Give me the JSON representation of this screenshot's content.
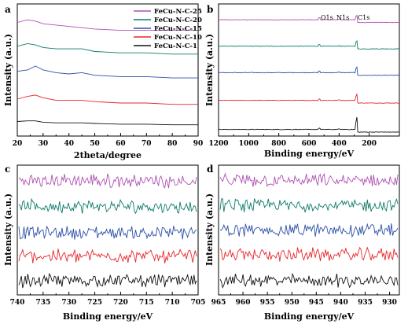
{
  "colors": {
    "FeCu-N-C-25": "#b04fb4",
    "FeCu-N-C-20": "#0c7a6a",
    "FeCu-N-C-15": "#2b4fa8",
    "FeCu-N-C-10": "#e8262a",
    "FeCu-N-C-1": "#111111"
  },
  "legend": [
    "FeCu-N-C-25",
    "FeCu-N-C-20",
    "FeCu-N-C-15",
    "FeCu-N-C-10",
    "FeCu-N-C-1"
  ],
  "chart_data": [
    {
      "panel": "a",
      "type": "line",
      "xlabel": "2theta/degree",
      "ylabel": "Intensity (a.u.)",
      "xlim": [
        20,
        90
      ],
      "x_ticks": [
        "20",
        "30",
        "40",
        "50",
        "60",
        "70",
        "80",
        "90"
      ],
      "series": [
        {
          "name": "FeCu-N-C-25",
          "x": [
            20,
            24,
            27,
            30,
            35,
            40,
            45,
            50,
            60,
            70,
            80,
            90
          ],
          "y": [
            0.86,
            0.88,
            0.87,
            0.85,
            0.84,
            0.83,
            0.82,
            0.81,
            0.8,
            0.8,
            0.8,
            0.8
          ]
        },
        {
          "name": "FeCu-N-C-20",
          "x": [
            20,
            24,
            27,
            30,
            35,
            40,
            45,
            50,
            60,
            70,
            80,
            90
          ],
          "y": [
            0.68,
            0.7,
            0.69,
            0.67,
            0.66,
            0.66,
            0.66,
            0.64,
            0.63,
            0.63,
            0.62,
            0.62
          ]
        },
        {
          "name": "FeCu-N-C-15",
          "x": [
            20,
            24,
            27,
            30,
            35,
            40,
            45,
            50,
            60,
            70,
            80,
            90
          ],
          "y": [
            0.49,
            0.5,
            0.53,
            0.5,
            0.48,
            0.47,
            0.48,
            0.46,
            0.45,
            0.45,
            0.44,
            0.44
          ]
        },
        {
          "name": "FeCu-N-C-10",
          "x": [
            20,
            24,
            27,
            30,
            35,
            40,
            45,
            50,
            60,
            70,
            80,
            90
          ],
          "y": [
            0.28,
            0.3,
            0.31,
            0.29,
            0.27,
            0.27,
            0.27,
            0.26,
            0.25,
            0.25,
            0.24,
            0.24
          ]
        },
        {
          "name": "FeCu-N-C-1",
          "x": [
            20,
            24,
            27,
            30,
            35,
            40,
            45,
            50,
            60,
            70,
            80,
            90
          ],
          "y": [
            0.11,
            0.115,
            0.115,
            0.105,
            0.1,
            0.1,
            0.1,
            0.095,
            0.09,
            0.09,
            0.085,
            0.085
          ]
        }
      ]
    },
    {
      "panel": "b",
      "type": "line",
      "xlabel": "Binding energy/eV",
      "ylabel": "Intensity (a.u.)",
      "xlim": [
        1200,
        0
      ],
      "x_ticks": [
        "1200",
        "1000",
        "800",
        "600",
        "400",
        "200"
      ],
      "annotations": [
        "O1s",
        "N1s",
        "C1s"
      ],
      "series": [
        {
          "name": "FeCu-N-C-25",
          "baseline": 0.88,
          "peak_c1s": 0.08,
          "peak_o1s": 0.015
        },
        {
          "name": "FeCu-N-C-20",
          "baseline": 0.68,
          "peak_c1s": 0.09,
          "peak_o1s": 0.012
        },
        {
          "name": "FeCu-N-C-15",
          "baseline": 0.48,
          "peak_c1s": 0.09,
          "peak_o1s": 0.012
        },
        {
          "name": "FeCu-N-C-10",
          "baseline": 0.27,
          "peak_c1s": 0.1,
          "peak_o1s": 0.01
        },
        {
          "name": "FeCu-N-C-1",
          "baseline": 0.05,
          "peak_c1s": 0.17,
          "peak_o1s": 0.01
        }
      ]
    },
    {
      "panel": "c",
      "type": "line",
      "xlabel": "Binding energy/eV",
      "ylabel": "Intensity (a.u.)",
      "xlim": [
        740,
        705
      ],
      "x_ticks": [
        "740",
        "735",
        "730",
        "725",
        "720",
        "715",
        "710",
        "705"
      ],
      "series_offsets": {
        "FeCu-N-C-25": 0.88,
        "FeCu-N-C-20": 0.68,
        "FeCu-N-C-15": 0.48,
        "FeCu-N-C-10": 0.3,
        "FeCu-N-C-1": 0.11
      }
    },
    {
      "panel": "d",
      "type": "line",
      "xlabel": "Binding energy/eV",
      "ylabel": "Intensity (a.u.)",
      "xlim": [
        965,
        928
      ],
      "x_ticks": [
        "965",
        "960",
        "955",
        "950",
        "945",
        "940",
        "935",
        "930"
      ],
      "series_offsets": {
        "FeCu-N-C-25": 0.88,
        "FeCu-N-C-20": 0.69,
        "FeCu-N-C-15": 0.5,
        "FeCu-N-C-10": 0.31,
        "FeCu-N-C-1": 0.11
      }
    }
  ]
}
